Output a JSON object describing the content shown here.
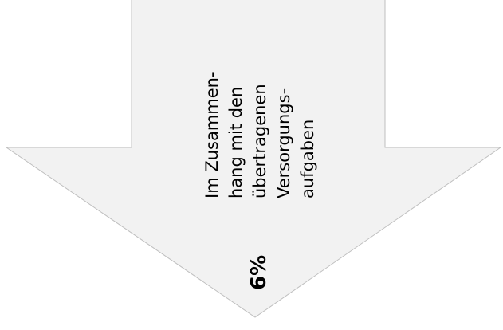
{
  "arrow": {
    "label_lines": [
      "Im Zusammen-",
      "hang mit den",
      "übertragenen",
      "Versorgungs-",
      "aufgaben"
    ],
    "value": "6%"
  }
}
